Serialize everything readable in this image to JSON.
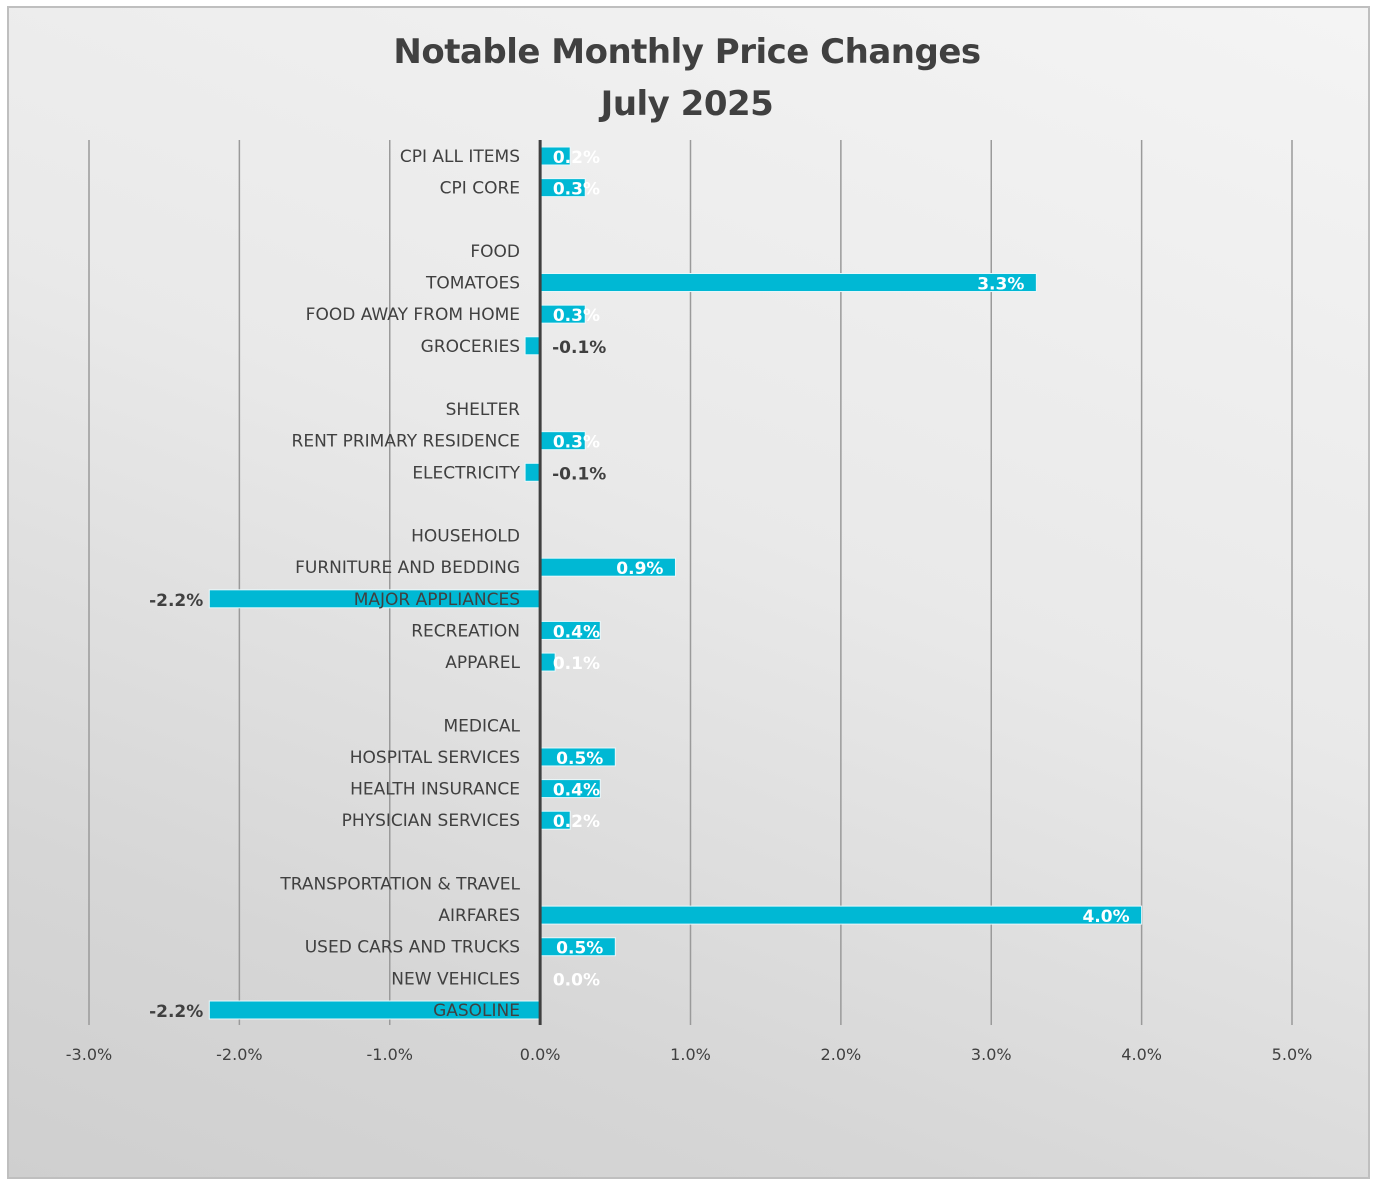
{
  "chart_data": {
    "type": "bar",
    "orientation": "horizontal",
    "title": "Notable Monthly Price Changes",
    "subtitle": "July 2025",
    "xlabel": "",
    "ylabel": "",
    "xlim": [
      -3.0,
      5.0
    ],
    "x_ticks": [
      "-3.0%",
      "-2.0%",
      "-1.0%",
      "0.0%",
      "1.0%",
      "2.0%",
      "3.0%",
      "4.0%",
      "5.0%"
    ],
    "grid": true,
    "bar_color": "#00b8d4",
    "rows": [
      {
        "label": "CPI ALL ITEMS",
        "value": 0.2,
        "data_label": "0.2%"
      },
      {
        "label": "CPI CORE",
        "value": 0.3,
        "data_label": "0.3%"
      },
      {
        "label": "",
        "value": null,
        "data_label": ""
      },
      {
        "label": "FOOD",
        "value": null,
        "data_label": ""
      },
      {
        "label": "TOMATOES",
        "value": 3.3,
        "data_label": "3.3%"
      },
      {
        "label": "FOOD AWAY FROM HOME",
        "value": 0.3,
        "data_label": "0.3%"
      },
      {
        "label": "GROCERIES",
        "value": -0.1,
        "data_label": "-0.1%"
      },
      {
        "label": "",
        "value": null,
        "data_label": ""
      },
      {
        "label": "SHELTER",
        "value": null,
        "data_label": ""
      },
      {
        "label": "RENT PRIMARY RESIDENCE",
        "value": 0.3,
        "data_label": "0.3%"
      },
      {
        "label": "ELECTRICITY",
        "value": -0.1,
        "data_label": "-0.1%"
      },
      {
        "label": "",
        "value": null,
        "data_label": ""
      },
      {
        "label": "HOUSEHOLD",
        "value": null,
        "data_label": ""
      },
      {
        "label": "FURNITURE AND BEDDING",
        "value": 0.9,
        "data_label": "0.9%"
      },
      {
        "label": "MAJOR APPLIANCES",
        "value": -2.2,
        "data_label": "-2.2%"
      },
      {
        "label": "RECREATION",
        "value": 0.4,
        "data_label": "0.4%"
      },
      {
        "label": "APPAREL",
        "value": 0.1,
        "data_label": "0.1%"
      },
      {
        "label": "",
        "value": null,
        "data_label": ""
      },
      {
        "label": "MEDICAL",
        "value": null,
        "data_label": ""
      },
      {
        "label": "HOSPITAL SERVICES",
        "value": 0.5,
        "data_label": "0.5%"
      },
      {
        "label": "HEALTH INSURANCE",
        "value": 0.4,
        "data_label": "0.4%"
      },
      {
        "label": "PHYSICIAN SERVICES",
        "value": 0.2,
        "data_label": "0.2%"
      },
      {
        "label": "",
        "value": null,
        "data_label": ""
      },
      {
        "label": "TRANSPORTATION & TRAVEL",
        "value": null,
        "data_label": ""
      },
      {
        "label": "AIRFARES",
        "value": 4.0,
        "data_label": "4.0%"
      },
      {
        "label": "USED CARS AND TRUCKS",
        "value": 0.5,
        "data_label": "0.5%"
      },
      {
        "label": "NEW VEHICLES",
        "value": 0.0,
        "data_label": "0.0%"
      },
      {
        "label": "GASOLINE",
        "value": -2.2,
        "data_label": "-2.2%"
      }
    ]
  }
}
